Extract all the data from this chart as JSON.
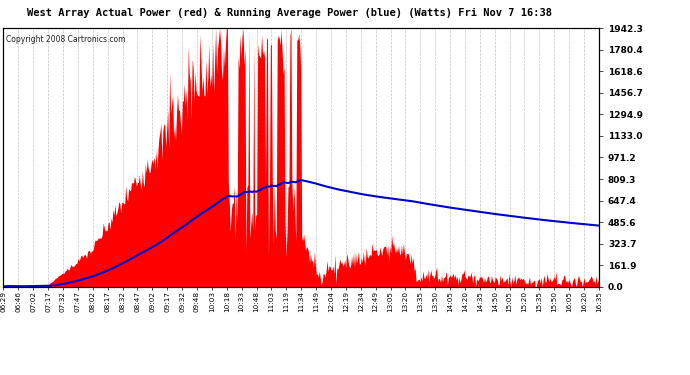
{
  "title": "West Array Actual Power (red) & Running Average Power (blue) (Watts) Fri Nov 7 16:38",
  "copyright": "Copyright 2008 Cartronics.com",
  "ylabel_right": [
    "0.0",
    "161.9",
    "323.7",
    "485.6",
    "647.4",
    "809.3",
    "971.2",
    "1133.0",
    "1294.9",
    "1456.7",
    "1618.6",
    "1780.4",
    "1942.3"
  ],
  "ymax": 1942.3,
  "ymin": 0.0,
  "bg_color": "#ffffff",
  "plot_bg_color": "#ffffff",
  "grid_color": "#aaaaaa",
  "title_color": "#000000",
  "bar_color": "#ff0000",
  "avg_color": "#0000cc",
  "x_labels": [
    "06:29",
    "06:46",
    "07:02",
    "07:17",
    "07:32",
    "07:47",
    "08:02",
    "08:17",
    "08:32",
    "08:47",
    "09:02",
    "09:17",
    "09:32",
    "09:48",
    "10:03",
    "10:18",
    "10:33",
    "10:48",
    "11:03",
    "11:19",
    "11:34",
    "11:49",
    "12:04",
    "12:19",
    "12:34",
    "12:49",
    "13:05",
    "13:20",
    "13:35",
    "13:50",
    "14:05",
    "14:20",
    "14:35",
    "14:50",
    "15:05",
    "15:20",
    "15:35",
    "15:50",
    "16:05",
    "16:20",
    "16:35"
  ],
  "n_points": 610
}
